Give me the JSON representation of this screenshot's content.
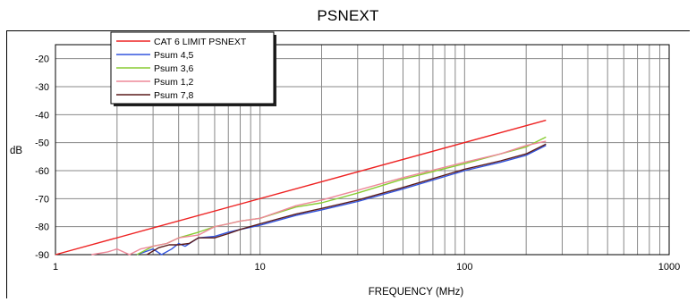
{
  "chart_data": {
    "type": "line",
    "title": "PSNEXT",
    "xlabel": "FREQUENCY (MHz)",
    "ylabel": "dB",
    "x_scale": "log",
    "xlim": [
      1,
      1000
    ],
    "ylim": [
      -90,
      -15
    ],
    "x_ticks": [
      "1",
      "10",
      "100",
      "1000"
    ],
    "y_ticks": [
      "-20",
      "-30",
      "-40",
      "-50",
      "-60",
      "-70",
      "-80",
      "-90"
    ],
    "grid": true,
    "legend_position": "top-left",
    "series": [
      {
        "name": "CAT 6 LIMIT PSNEXT",
        "color": "#ee2222",
        "x": [
          1,
          250
        ],
        "y": [
          -90,
          -42
        ]
      },
      {
        "name": "Psum 4,5",
        "color": "#3355dd",
        "x": [
          2.5,
          3,
          3.3,
          3.7,
          4,
          4.3,
          5,
          6,
          7,
          8,
          10,
          15,
          20,
          30,
          50,
          100,
          150,
          200,
          250
        ],
        "y": [
          -90,
          -88,
          -90,
          -88,
          -86,
          -87,
          -84,
          -83.5,
          -82,
          -81,
          -79.5,
          -76,
          -74,
          -71,
          -66.5,
          -60,
          -57,
          -54.5,
          -51
        ]
      },
      {
        "name": "Psum 3,6",
        "color": "#88cc33",
        "x": [
          2.5,
          3,
          3.5,
          4,
          5,
          6,
          7,
          8,
          10,
          15,
          20,
          30,
          50,
          100,
          150,
          200,
          250
        ],
        "y": [
          -90,
          -87,
          -86,
          -84,
          -82,
          -80,
          -79,
          -78,
          -77,
          -73,
          -71.5,
          -68,
          -63,
          -57.5,
          -54,
          -51.5,
          -48
        ]
      },
      {
        "name": "Psum 1,2",
        "color": "#ee8899",
        "x": [
          1.5,
          1.8,
          2,
          2.3,
          2.6,
          3,
          3.5,
          4,
          5,
          6,
          7,
          8,
          10,
          15,
          20,
          30,
          50,
          100,
          150,
          200,
          250
        ],
        "y": [
          -90,
          -89,
          -88,
          -90,
          -88,
          -87,
          -86,
          -84,
          -83,
          -80,
          -79,
          -78,
          -77,
          -72.5,
          -70.5,
          -67,
          -62.5,
          -57,
          -54,
          -51,
          -49.5
        ]
      },
      {
        "name": "Psum 7,8",
        "color": "#5a1a1a",
        "x": [
          2.8,
          3.2,
          3.6,
          4,
          4.5,
          5,
          6,
          7,
          8,
          10,
          15,
          20,
          30,
          50,
          100,
          150,
          200,
          250
        ],
        "y": [
          -90,
          -87.5,
          -86.5,
          -86.5,
          -86,
          -84,
          -84,
          -82.5,
          -81,
          -79,
          -75.5,
          -73.5,
          -70.5,
          -66,
          -59.5,
          -56.5,
          -54,
          -50.5
        ]
      }
    ]
  }
}
